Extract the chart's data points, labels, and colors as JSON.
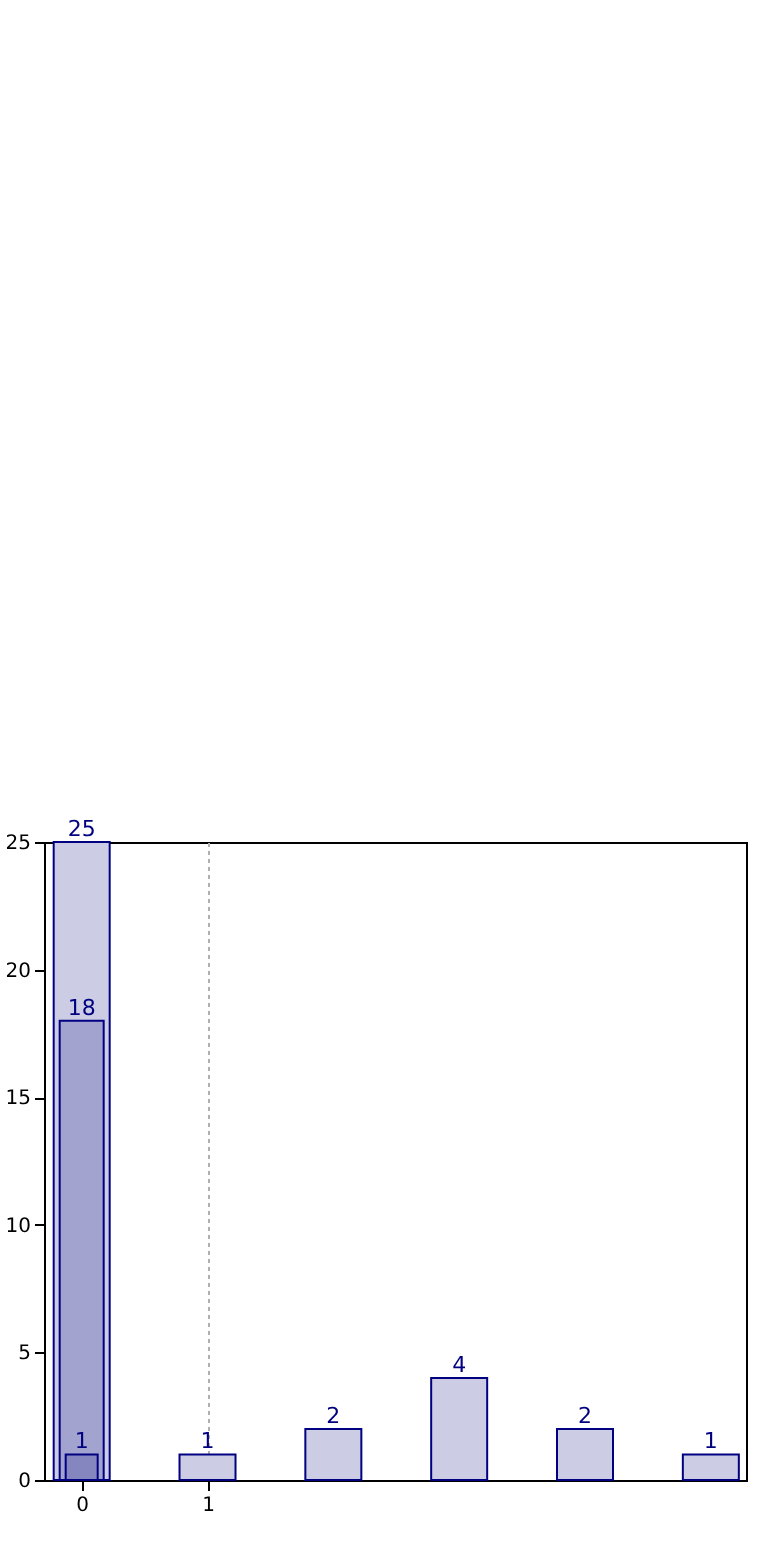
{
  "chart_data": {
    "type": "bar",
    "x": [
      0,
      1,
      2,
      3,
      4,
      5
    ],
    "xlim": [
      -0.22,
      5.2
    ],
    "xticks": [
      0,
      1
    ],
    "ylim": [
      0,
      25
    ],
    "yticks": [
      0,
      5,
      10,
      15,
      20,
      25
    ],
    "grid": "x",
    "data_labels": true,
    "series": [
      {
        "color": "#ccccE4",
        "values": [
          25,
          1,
          2,
          4,
          2,
          1
        ]
      },
      {
        "color": "#a3a3d0",
        "x": [
          0
        ],
        "values": [
          18
        ]
      },
      {
        "color": "#8585c0",
        "x": [
          0
        ],
        "values": [
          1
        ]
      }
    ]
  }
}
